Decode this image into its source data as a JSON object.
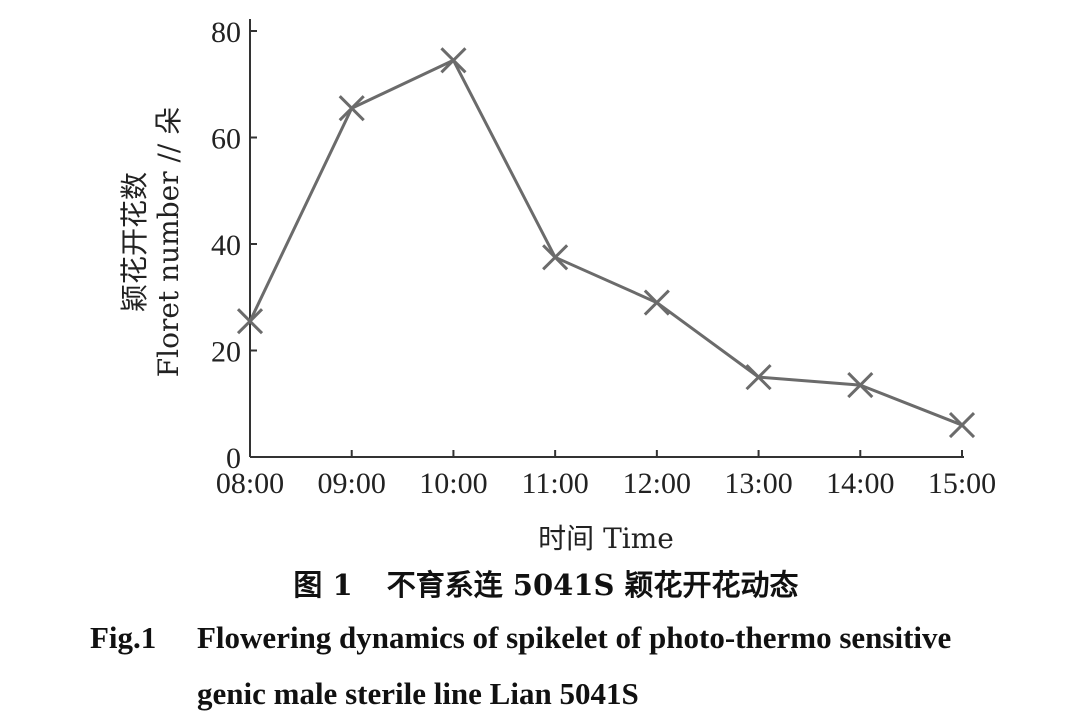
{
  "chart_data": {
    "type": "line",
    "categories": [
      "08:00",
      "09:00",
      "10:00",
      "11:00",
      "12:00",
      "13:00",
      "14:00",
      "15:00"
    ],
    "series": [
      {
        "values": [
          25.5,
          65.5,
          74.5,
          37.5,
          29,
          15,
          13.5,
          6
        ],
        "marker": "x"
      }
    ],
    "xlabel": "时间 Time",
    "ylabel_cn": "颖花开花数",
    "ylabel_en": "Floret number // 朵",
    "yticks": [
      0,
      20,
      40,
      60,
      80
    ],
    "ylim": [
      0,
      80
    ],
    "line_color": "#6b6b6b",
    "grid": false
  },
  "caption": {
    "cn_label": "图 1",
    "cn_text": "不育系连 5041S 颖花开花动态",
    "en_label": "Fig.1",
    "en_line1": "Flowering dynamics of spikelet of photo-thermo sensitive",
    "en_line2": "genic male sterile line Lian 5041S"
  }
}
